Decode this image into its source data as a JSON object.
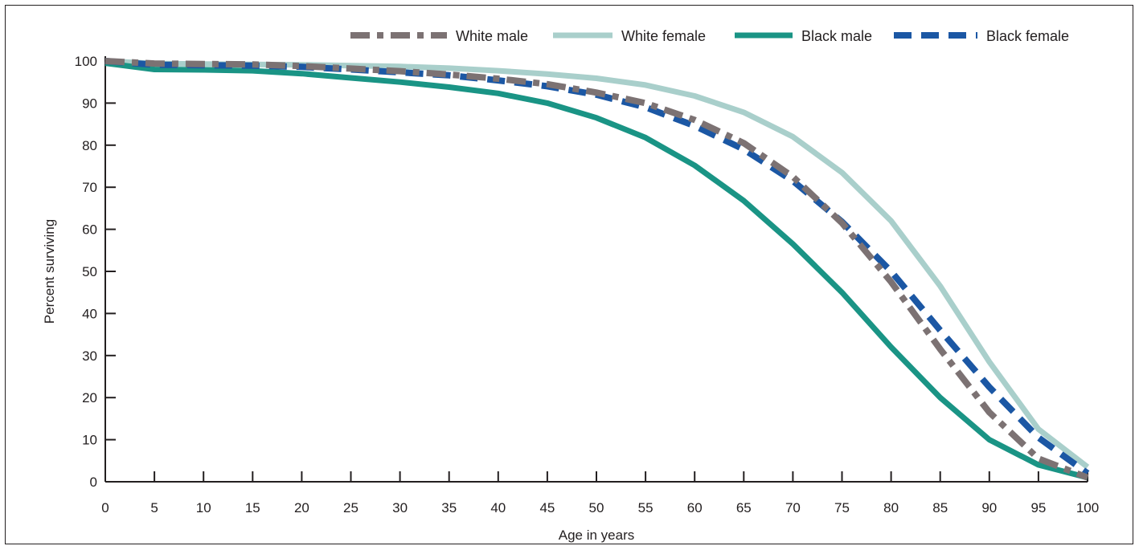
{
  "chart_data": {
    "type": "line",
    "title": "",
    "xlabel": "Age in years",
    "ylabel": "Percent surviving",
    "xlim": [
      0,
      100
    ],
    "ylim": [
      0,
      100
    ],
    "x_ticks": [
      0,
      5,
      10,
      15,
      20,
      25,
      30,
      35,
      40,
      45,
      50,
      55,
      60,
      65,
      70,
      75,
      80,
      85,
      90,
      95,
      100
    ],
    "y_ticks": [
      0,
      10,
      20,
      30,
      40,
      50,
      60,
      70,
      80,
      90,
      100
    ],
    "grid": false,
    "legend_position": "top-right",
    "x": [
      0,
      5,
      10,
      15,
      20,
      25,
      30,
      35,
      40,
      45,
      50,
      55,
      60,
      65,
      70,
      75,
      80,
      85,
      90,
      95,
      100
    ],
    "series": [
      {
        "name": "White female",
        "color": "#a9cfcb",
        "style": "solid",
        "values": [
          100,
          99.4,
          99.3,
          99.2,
          99.1,
          98.9,
          98.7,
          98.3,
          97.7,
          96.9,
          95.9,
          94.3,
          91.7,
          87.8,
          82.0,
          73.5,
          62.0,
          46.5,
          28.5,
          12.5,
          3.5
        ]
      },
      {
        "name": "Black male",
        "color": "#1a9485",
        "style": "solid",
        "values": [
          99.5,
          98.0,
          97.9,
          97.7,
          97.0,
          96.0,
          95.0,
          93.8,
          92.3,
          90.0,
          86.5,
          81.8,
          75.2,
          66.8,
          56.5,
          45.0,
          32.0,
          20.0,
          10.0,
          4.0,
          1.0
        ]
      },
      {
        "name": "Black female",
        "color": "#1b57a4",
        "style": "dashed",
        "values": [
          100,
          99.1,
          99.0,
          98.9,
          98.6,
          98.0,
          97.3,
          96.6,
          95.4,
          94.0,
          92.0,
          89.0,
          84.6,
          79.0,
          71.5,
          61.8,
          50.0,
          36.0,
          22.5,
          10.5,
          2.0
        ]
      },
      {
        "name": "White male",
        "color": "#7c7273",
        "style": "dash-dot",
        "values": [
          100,
          99.4,
          99.3,
          99.2,
          98.8,
          98.2,
          97.6,
          96.8,
          95.8,
          94.5,
          92.5,
          90.0,
          86.0,
          80.5,
          72.5,
          61.5,
          47.5,
          31.5,
          16.5,
          5.5,
          1.0
        ]
      }
    ],
    "legend": [
      "White male",
      "White female",
      "Black male",
      "Black female"
    ]
  }
}
